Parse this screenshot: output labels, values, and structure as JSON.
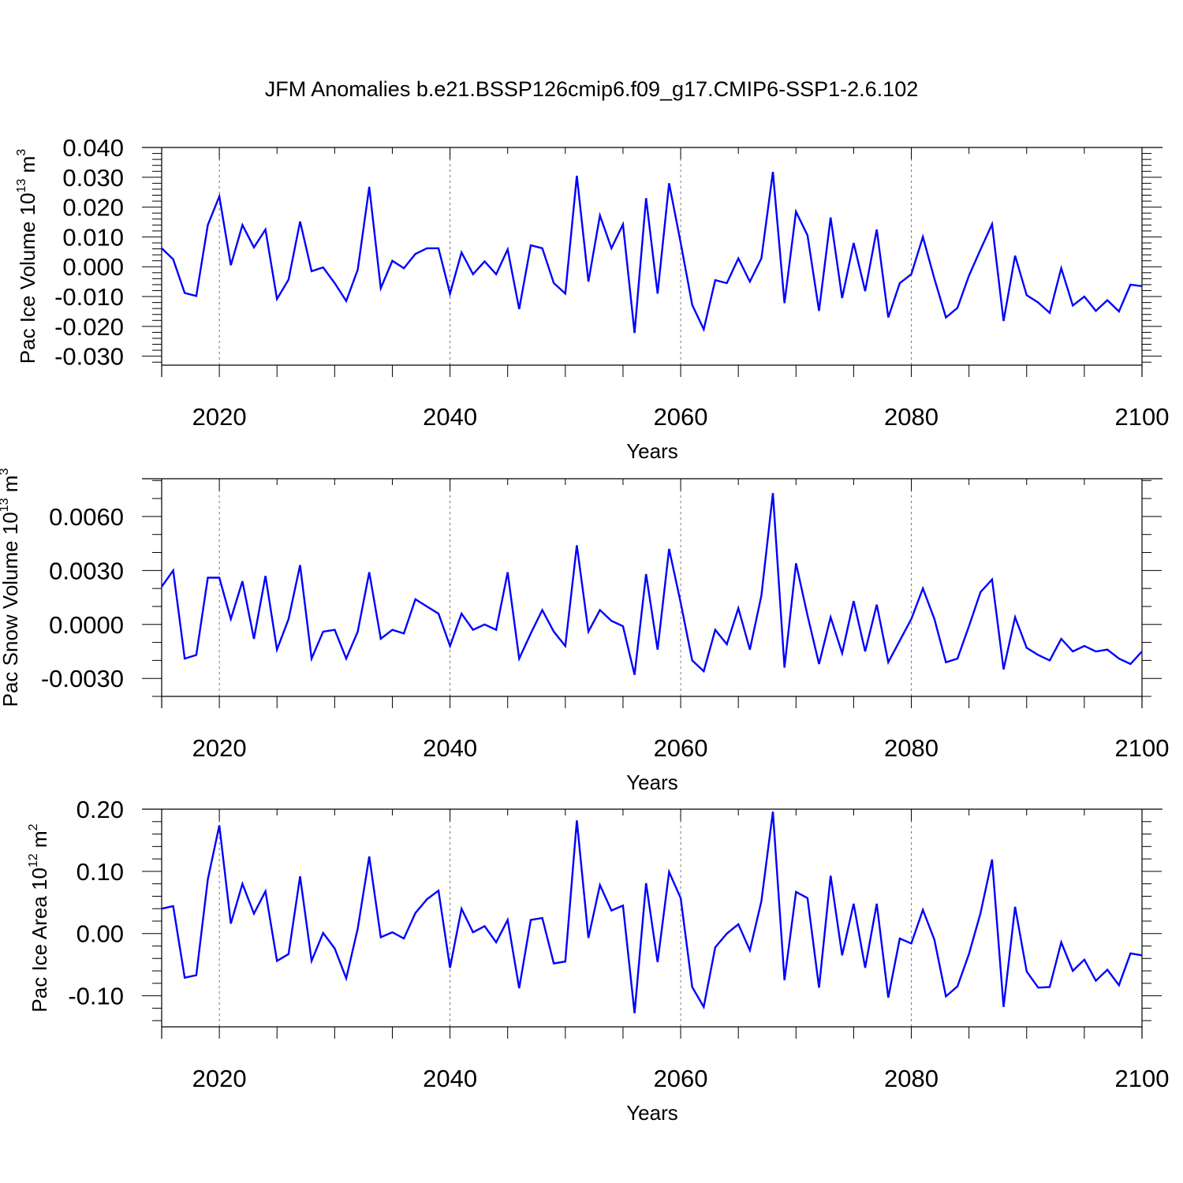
{
  "title": "JFM Anomalies b.e21.BSSP126cmip6.f09_g17.CMIP6-SSP1-2.6.102",
  "colors": {
    "line": "#0000ff",
    "axis": "#000000",
    "grid": "#777777"
  },
  "chart_data": [
    {
      "type": "line",
      "ylabel": "Pac Ice Volume 10",
      "ylabel_exp": "13",
      "ylabel_unit": "m",
      "ylabel_unit_exp": "3",
      "xlabel": "Years",
      "xlim": [
        2015,
        2100
      ],
      "ylim": [
        -0.033,
        0.04
      ],
      "yticks": [
        "0.040",
        "0.030",
        "0.020",
        "0.010",
        "0.000",
        "-0.010",
        "-0.020",
        "-0.030"
      ],
      "ytick_values": [
        0.04,
        0.03,
        0.02,
        0.01,
        0.0,
        -0.01,
        -0.02,
        -0.03
      ],
      "ytick_minor_step": 0.002,
      "xticks": [
        "2020",
        "2040",
        "2060",
        "2080",
        "2100"
      ],
      "xtick_values": [
        2020,
        2040,
        2060,
        2080,
        2100
      ],
      "grid_x": [
        2020,
        2040,
        2060,
        2080
      ],
      "x": [
        2015,
        2016,
        2017,
        2018,
        2019,
        2020,
        2021,
        2022,
        2023,
        2024,
        2025,
        2026,
        2027,
        2028,
        2029,
        2030,
        2031,
        2032,
        2033,
        2034,
        2035,
        2036,
        2037,
        2038,
        2039,
        2040,
        2041,
        2042,
        2043,
        2044,
        2045,
        2046,
        2047,
        2048,
        2049,
        2050,
        2051,
        2052,
        2053,
        2054,
        2055,
        2056,
        2057,
        2058,
        2059,
        2060,
        2061,
        2062,
        2063,
        2064,
        2065,
        2066,
        2067,
        2068,
        2069,
        2070,
        2071,
        2072,
        2073,
        2074,
        2075,
        2076,
        2077,
        2078,
        2079,
        2080,
        2081,
        2082,
        2083,
        2084,
        2085,
        2086,
        2087,
        2088,
        2089,
        2090,
        2091,
        2092,
        2093,
        2094,
        2095,
        2096,
        2097,
        2098,
        2099,
        2100
      ],
      "series": [
        {
          "values": [
            0.0062,
            0.0025,
            -0.0088,
            -0.0098,
            0.014,
            0.0236,
            0.0005,
            0.014,
            0.0065,
            0.0125,
            -0.0108,
            -0.0043,
            0.0152,
            -0.0015,
            -0.0002,
            -0.0055,
            -0.0115,
            -0.001,
            0.0268,
            -0.0072,
            0.002,
            -0.0005,
            0.0043,
            0.0062,
            0.0062,
            -0.009,
            0.0048,
            -0.0025,
            0.0018,
            -0.0025,
            0.0058,
            -0.0142,
            0.0072,
            0.0062,
            -0.0055,
            -0.009,
            0.0305,
            -0.005,
            0.0172,
            0.0062,
            0.0142,
            -0.0222,
            0.023,
            -0.009,
            0.028,
            0.008,
            -0.0128,
            -0.021,
            -0.0045,
            -0.0055,
            0.0028,
            -0.005,
            0.0028,
            0.0318,
            -0.0122,
            0.0185,
            0.0105,
            -0.0148,
            0.0165,
            -0.0105,
            0.008,
            -0.0082,
            0.0125,
            -0.017,
            -0.0055,
            -0.0025,
            0.01,
            -0.004,
            -0.017,
            -0.0138,
            -0.003,
            0.0058,
            0.0143,
            -0.0182,
            0.0037,
            -0.0095,
            -0.012,
            -0.0155,
            -0.0005,
            -0.013,
            -0.01,
            -0.0148,
            -0.0112,
            -0.015,
            -0.006,
            -0.0065
          ]
        }
      ]
    },
    {
      "type": "line",
      "ylabel": "Pac Snow Volume 10",
      "ylabel_exp": "13",
      "ylabel_unit": "m",
      "ylabel_unit_exp": "3",
      "xlabel": "Years",
      "xlim": [
        2015,
        2100
      ],
      "ylim": [
        -0.004,
        0.0081
      ],
      "yticks": [
        "0.0060",
        "0.0030",
        "0.0000",
        "-0.0030"
      ],
      "ytick_values": [
        0.006,
        0.003,
        0.0,
        -0.003
      ],
      "ytick_minor_step": 0.001,
      "xticks": [
        "2020",
        "2040",
        "2060",
        "2080",
        "2100"
      ],
      "xtick_values": [
        2020,
        2040,
        2060,
        2080,
        2100
      ],
      "grid_x": [
        2020,
        2040,
        2060,
        2080
      ],
      "x": [
        2015,
        2016,
        2017,
        2018,
        2019,
        2020,
        2021,
        2022,
        2023,
        2024,
        2025,
        2026,
        2027,
        2028,
        2029,
        2030,
        2031,
        2032,
        2033,
        2034,
        2035,
        2036,
        2037,
        2038,
        2039,
        2040,
        2041,
        2042,
        2043,
        2044,
        2045,
        2046,
        2047,
        2048,
        2049,
        2050,
        2051,
        2052,
        2053,
        2054,
        2055,
        2056,
        2057,
        2058,
        2059,
        2060,
        2061,
        2062,
        2063,
        2064,
        2065,
        2066,
        2067,
        2068,
        2069,
        2070,
        2071,
        2072,
        2073,
        2074,
        2075,
        2076,
        2077,
        2078,
        2079,
        2080,
        2081,
        2082,
        2083,
        2084,
        2085,
        2086,
        2087,
        2088,
        2089,
        2090,
        2091,
        2092,
        2093,
        2094,
        2095,
        2096,
        2097,
        2098,
        2099,
        2100
      ],
      "series": [
        {
          "values": [
            0.0021,
            0.003,
            -0.0019,
            -0.0017,
            0.0026,
            0.0026,
            0.0003,
            0.0024,
            -0.0008,
            0.0027,
            -0.0014,
            0.0003,
            0.0033,
            -0.0019,
            -0.0004,
            -0.0003,
            -0.0019,
            -0.0004,
            0.0029,
            -0.0008,
            -0.0003,
            -0.0005,
            0.0014,
            0.001,
            0.0006,
            -0.0012,
            0.0006,
            -0.0003,
            0.0,
            -0.0003,
            0.0029,
            -0.0019,
            -0.0005,
            0.0008,
            -0.0004,
            -0.0012,
            0.0044,
            -0.0004,
            0.0008,
            0.0002,
            -0.0001,
            -0.0028,
            0.0028,
            -0.0014,
            0.0042,
            0.0012,
            -0.002,
            -0.0026,
            -0.0003,
            -0.0011,
            0.0009,
            -0.0014,
            0.0016,
            0.0073,
            -0.0024,
            0.0034,
            0.0005,
            -0.0022,
            0.0004,
            -0.0016,
            0.0013,
            -0.0015,
            0.0011,
            -0.0021,
            -0.0009,
            0.0003,
            0.002,
            0.0003,
            -0.0021,
            -0.0019,
            -0.0001,
            0.0018,
            0.0025,
            -0.0025,
            0.0004,
            -0.0013,
            -0.0017,
            -0.002,
            -0.0008,
            -0.0015,
            -0.0012,
            -0.0015,
            -0.0014,
            -0.0019,
            -0.0022,
            -0.0015
          ]
        }
      ]
    },
    {
      "type": "line",
      "ylabel": "Pac Ice Area 10",
      "ylabel_exp": "12",
      "ylabel_unit": "m",
      "ylabel_unit_exp": "2",
      "xlabel": "Years",
      "xlim": [
        2015,
        2100
      ],
      "ylim": [
        -0.15,
        0.2
      ],
      "yticks": [
        "0.20",
        "0.10",
        "0.00",
        "-0.10"
      ],
      "ytick_values": [
        0.2,
        0.1,
        0.0,
        -0.1
      ],
      "ytick_minor_step": 0.02,
      "xticks": [
        "2020",
        "2040",
        "2060",
        "2080",
        "2100"
      ],
      "xtick_values": [
        2020,
        2040,
        2060,
        2080,
        2100
      ],
      "grid_x": [
        2020,
        2040,
        2060,
        2080
      ],
      "x": [
        2015,
        2016,
        2017,
        2018,
        2019,
        2020,
        2021,
        2022,
        2023,
        2024,
        2025,
        2026,
        2027,
        2028,
        2029,
        2030,
        2031,
        2032,
        2033,
        2034,
        2035,
        2036,
        2037,
        2038,
        2039,
        2040,
        2041,
        2042,
        2043,
        2044,
        2045,
        2046,
        2047,
        2048,
        2049,
        2050,
        2051,
        2052,
        2053,
        2054,
        2055,
        2056,
        2057,
        2058,
        2059,
        2060,
        2061,
        2062,
        2063,
        2064,
        2065,
        2066,
        2067,
        2068,
        2069,
        2070,
        2071,
        2072,
        2073,
        2074,
        2075,
        2076,
        2077,
        2078,
        2079,
        2080,
        2081,
        2082,
        2083,
        2084,
        2085,
        2086,
        2087,
        2088,
        2089,
        2090,
        2091,
        2092,
        2093,
        2094,
        2095,
        2096,
        2097,
        2098,
        2099,
        2100
      ],
      "series": [
        {
          "values": [
            0.04,
            0.044,
            -0.071,
            -0.067,
            0.087,
            0.174,
            0.016,
            0.08,
            0.032,
            0.068,
            -0.044,
            -0.033,
            0.092,
            -0.044,
            0.001,
            -0.024,
            -0.072,
            0.008,
            0.124,
            -0.006,
            0.002,
            -0.008,
            0.033,
            0.055,
            0.069,
            -0.055,
            0.04,
            0.002,
            0.012,
            -0.014,
            0.022,
            -0.088,
            0.022,
            0.025,
            -0.048,
            -0.045,
            0.182,
            -0.007,
            0.078,
            0.037,
            0.045,
            -0.128,
            0.081,
            -0.046,
            0.099,
            0.057,
            -0.086,
            -0.118,
            -0.022,
            0.0,
            0.015,
            -0.027,
            0.052,
            0.196,
            -0.075,
            0.067,
            0.057,
            -0.087,
            0.093,
            -0.035,
            0.048,
            -0.055,
            0.048,
            -0.103,
            -0.008,
            -0.016,
            0.038,
            -0.01,
            -0.101,
            -0.085,
            -0.033,
            0.033,
            0.119,
            -0.118,
            0.043,
            -0.061,
            -0.087,
            -0.086,
            -0.014,
            -0.06,
            -0.042,
            -0.076,
            -0.058,
            -0.083,
            -0.032,
            -0.035
          ]
        }
      ]
    }
  ]
}
